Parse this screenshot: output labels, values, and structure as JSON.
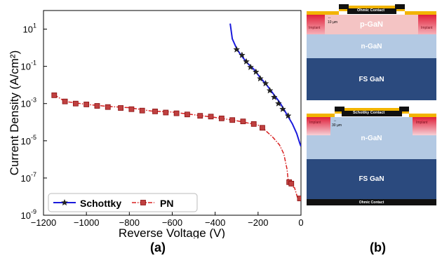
{
  "chart_data": {
    "type": "line",
    "panel_label": "(a)",
    "xlabel": "Reverse Voltage (V)",
    "ylabel": "Current Density (A/cm²)",
    "xlim": [
      -1200,
      0
    ],
    "ylim_log10": [
      -9,
      2
    ],
    "y_scale": "log",
    "x_ticks": [
      -1200,
      -1000,
      -800,
      -600,
      -400,
      -200,
      0
    ],
    "x_tick_labels": [
      "−1200",
      "−1000",
      "−800",
      "−600",
      "−400",
      "−200",
      "0"
    ],
    "y_ticks_log10": [
      1,
      -1,
      -3,
      -5,
      -7,
      -9
    ],
    "y_tick_labels": [
      {
        "base": "10",
        "exp": "1"
      },
      {
        "base": "10",
        "exp": "-1"
      },
      {
        "base": "10",
        "exp": "-3"
      },
      {
        "base": "10",
        "exp": "-5"
      },
      {
        "base": "10",
        "exp": "-7"
      },
      {
        "base": "10",
        "exp": "-9"
      }
    ],
    "legend_position": "bottom-left",
    "series": [
      {
        "name": "Schottky",
        "color": "#1a1adc",
        "line_style": "solid",
        "marker": "star",
        "curve": [
          [
            -330,
            20
          ],
          [
            -320,
            3
          ],
          [
            -300,
            0.9
          ],
          [
            -280,
            0.4
          ],
          [
            -250,
            0.15
          ],
          [
            -220,
            0.07
          ],
          [
            -190,
            0.025
          ],
          [
            -160,
            0.01
          ],
          [
            -130,
            0.0035
          ],
          [
            -100,
            0.0012
          ],
          [
            -80,
            0.0005
          ],
          [
            -60,
            0.0002
          ],
          [
            -40,
            8e-05
          ],
          [
            -20,
            2.5e-05
          ],
          [
            -5,
            7e-06
          ],
          [
            0,
            5e-06
          ]
        ],
        "markers": [
          [
            -300,
            0.8
          ],
          [
            -275,
            0.4
          ],
          [
            -255,
            0.18
          ],
          [
            -235,
            0.09
          ],
          [
            -210,
            0.05
          ],
          [
            -190,
            0.022
          ],
          [
            -165,
            0.012
          ],
          [
            -145,
            0.005
          ],
          [
            -125,
            0.0022
          ],
          [
            -105,
            0.001
          ],
          [
            -85,
            0.0005
          ],
          [
            -60,
            0.00022
          ]
        ]
      },
      {
        "name": "PN",
        "color": "#d82020",
        "marker_fill": "#c04040",
        "line_style": "dash-dot",
        "marker": "square",
        "curve": [
          [
            -1150,
            0.003
          ],
          [
            -1100,
            0.0013
          ],
          [
            -1000,
            0.0009
          ],
          [
            -900,
            0.0007
          ],
          [
            -800,
            0.0006
          ],
          [
            -700,
            0.0004
          ],
          [
            -600,
            0.00035
          ],
          [
            -500,
            0.00025
          ],
          [
            -400,
            0.00018
          ],
          [
            -300,
            0.00012
          ],
          [
            -200,
            7e-05
          ],
          [
            -170,
            4e-05
          ],
          [
            -130,
            1.5e-05
          ],
          [
            -100,
            6e-06
          ],
          [
            -80,
            2e-06
          ],
          [
            -65,
            3e-07
          ],
          [
            -58,
            5e-08
          ],
          [
            -48,
            4e-08
          ],
          [
            -30,
            3e-08
          ],
          [
            -15,
            8e-09
          ],
          [
            0,
            6e-09
          ]
        ],
        "markers": [
          [
            -1150,
            0.0028
          ],
          [
            -1100,
            0.0013
          ],
          [
            -1050,
            0.001
          ],
          [
            -1000,
            0.0009
          ],
          [
            -950,
            0.00075
          ],
          [
            -900,
            0.00065
          ],
          [
            -840,
            0.00058
          ],
          [
            -790,
            0.0005
          ],
          [
            -740,
            0.00042
          ],
          [
            -680,
            0.00038
          ],
          [
            -630,
            0.00033
          ],
          [
            -580,
            0.0003
          ],
          [
            -530,
            0.00026
          ],
          [
            -470,
            0.00022
          ],
          [
            -420,
            0.0002
          ],
          [
            -370,
            0.00016
          ],
          [
            -320,
            0.00013
          ],
          [
            -270,
            0.00011
          ],
          [
            -220,
            8e-05
          ],
          [
            -180,
            5e-05
          ],
          [
            -55,
            6e-08
          ],
          [
            -45,
            5e-08
          ],
          [
            -5,
            8e-09
          ]
        ]
      }
    ]
  },
  "diagrams": {
    "panel_label": "(b)",
    "top": {
      "contact_label": "Ohmic Contact",
      "dimension_label": "10 µm",
      "implant_left": "Implant",
      "implant_right": "Implant",
      "layers": [
        "p-GaN",
        "n-GaN",
        "FS GaN"
      ]
    },
    "bottom": {
      "contact_label": "Schottky Contact",
      "dimension_label": "30 µm",
      "implant_left": "Implant",
      "implant_right": "Implant",
      "layers": [
        "n-GaN",
        "FS GaN"
      ],
      "back_contact_label": "Ohmic Contact"
    }
  }
}
